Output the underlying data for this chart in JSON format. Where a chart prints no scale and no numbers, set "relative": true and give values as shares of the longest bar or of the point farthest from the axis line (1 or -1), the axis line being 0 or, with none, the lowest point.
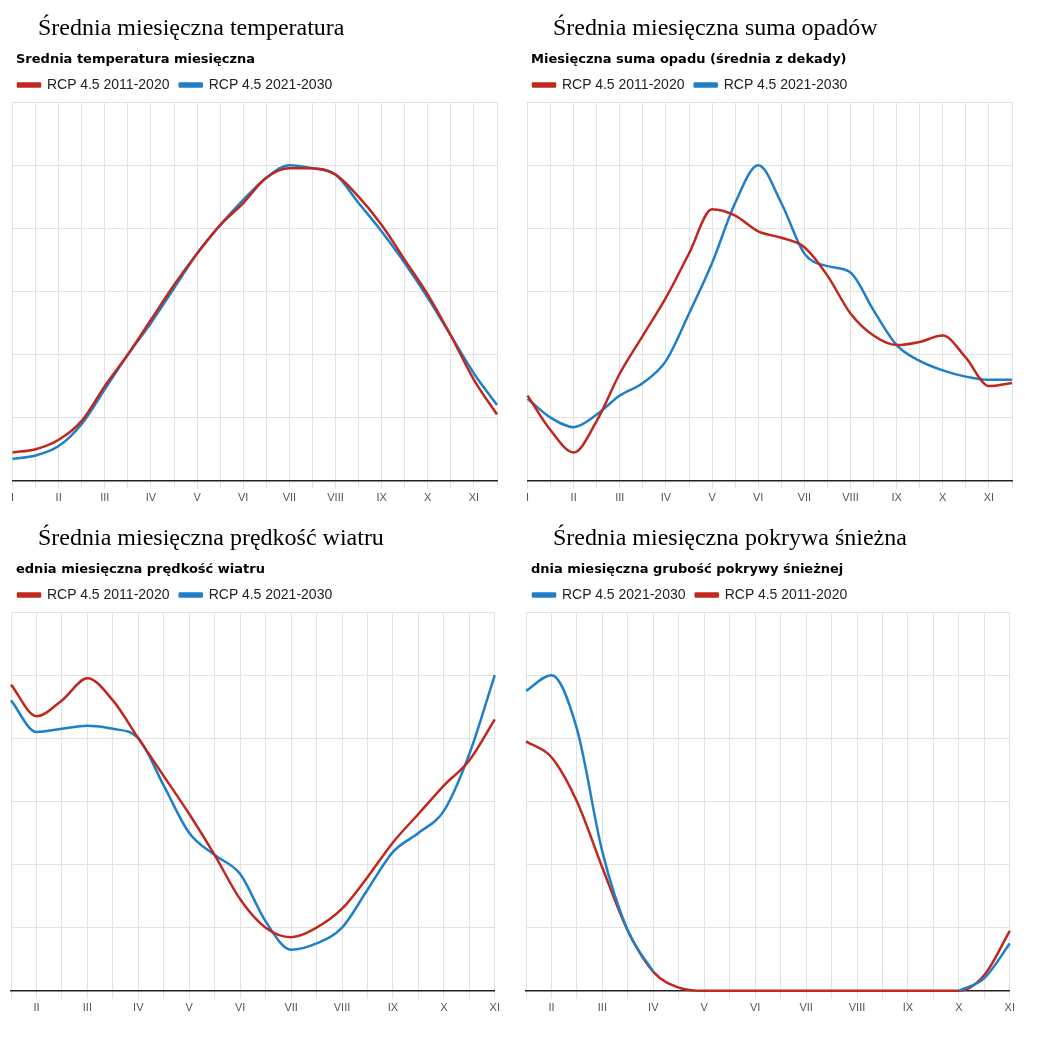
{
  "chart_data": [
    {
      "type": "line",
      "title": "Średnia miesięczna temperatura",
      "subtitle": "Srednia temperatura miesięczna",
      "relative": true,
      "grid": true,
      "legend": "top left",
      "categories": [
        "I",
        null,
        "II",
        null,
        "III",
        null,
        "IV",
        null,
        "V",
        null,
        "VI",
        null,
        "VII",
        null,
        "VIII",
        null,
        "IX",
        null,
        "X",
        null,
        "XI",
        null
      ],
      "series": [
        {
          "name": "RCP 4.5 2011-2020",
          "color": "#c0281e",
          "values": [
            0.09,
            0.1,
            0.13,
            0.19,
            0.3,
            0.4,
            0.51,
            0.62,
            0.72,
            0.81,
            0.88,
            0.96,
            0.99,
            0.99,
            0.97,
            0.9,
            0.81,
            0.7,
            0.59,
            0.46,
            0.32,
            0.21
          ]
        },
        {
          "name": "RCP 4.5 2021-2030",
          "color": "#1f7fc8",
          "values": [
            0.07,
            0.08,
            0.11,
            0.18,
            0.29,
            0.4,
            0.5,
            0.61,
            0.72,
            0.81,
            0.89,
            0.96,
            1.0,
            0.99,
            0.97,
            0.88,
            0.79,
            0.69,
            0.58,
            0.46,
            0.34,
            0.24
          ]
        }
      ]
    },
    {
      "type": "line",
      "title": "Średnia miesięczna suma opadów",
      "subtitle": "Miesięczna suma opadu (średnia z dekady)",
      "relative": true,
      "grid": true,
      "legend": "top left",
      "categories": [
        "I",
        null,
        "II",
        null,
        "III",
        null,
        "IV",
        null,
        "V",
        null,
        "VI",
        null,
        "VII",
        null,
        "VIII",
        null,
        "IX",
        null,
        "X",
        null,
        "XI",
        null
      ],
      "series": [
        {
          "name": "RCP 4.5 2011-2020",
          "color": "#c0281e",
          "values": [
            0.27,
            0.16,
            0.09,
            0.19,
            0.34,
            0.46,
            0.58,
            0.72,
            0.86,
            0.84,
            0.79,
            0.77,
            0.74,
            0.65,
            0.53,
            0.46,
            0.43,
            0.44,
            0.46,
            0.39,
            0.3,
            0.31
          ]
        },
        {
          "name": "RCP 4.5 2021-2030",
          "color": "#1f7fc8",
          "values": [
            0.26,
            0.2,
            0.17,
            0.21,
            0.27,
            0.31,
            0.38,
            0.53,
            0.69,
            0.88,
            1.0,
            0.88,
            0.72,
            0.68,
            0.66,
            0.54,
            0.43,
            0.38,
            0.35,
            0.33,
            0.32,
            0.32
          ]
        }
      ]
    },
    {
      "type": "line",
      "title": "Średnia miesięczna prędkość wiatru",
      "subtitle": "ednia miesięczna prędkość wiatru",
      "relative": true,
      "grid": true,
      "legend": "top left",
      "categories": [
        null,
        "II",
        null,
        "III",
        null,
        "IV",
        null,
        "V",
        null,
        "VI",
        null,
        "VII",
        null,
        "VIII",
        null,
        "IX",
        null,
        "X",
        null,
        "XI"
      ],
      "series": [
        {
          "name": "RCP 4.5 2011-2020",
          "color": "#c0281e",
          "values": [
            0.97,
            0.87,
            0.92,
            0.99,
            0.92,
            0.8,
            0.68,
            0.56,
            0.43,
            0.29,
            0.2,
            0.17,
            0.2,
            0.26,
            0.36,
            0.47,
            0.56,
            0.65,
            0.73,
            0.86
          ]
        },
        {
          "name": "RCP 4.5 2021-2030",
          "color": "#1f7fc8",
          "values": [
            0.92,
            0.82,
            0.83,
            0.84,
            0.83,
            0.8,
            0.65,
            0.5,
            0.43,
            0.37,
            0.22,
            0.13,
            0.15,
            0.2,
            0.32,
            0.44,
            0.5,
            0.57,
            0.75,
            1.0
          ]
        }
      ]
    },
    {
      "type": "line",
      "title": "Średnia miesięczna pokrywa śnieżna",
      "subtitle": "dnia miesięczna grubość pokrywy śnieżnej",
      "relative": true,
      "grid": true,
      "legend": "top left",
      "categories": [
        null,
        "II",
        null,
        "III",
        null,
        "IV",
        null,
        "V",
        null,
        "VI",
        null,
        "VII",
        null,
        "VIII",
        null,
        "IX",
        null,
        "X",
        null,
        "XI"
      ],
      "series": [
        {
          "name": "RCP 4.5 2021-2030",
          "color": "#1f7fc8",
          "values": [
            0.95,
            1.0,
            0.83,
            0.44,
            0.19,
            0.06,
            null,
            null,
            null,
            null,
            null,
            null,
            null,
            null,
            null,
            null,
            null,
            0,
            0.04,
            0.15
          ]
        },
        {
          "name": "RCP 4.5 2011-2020",
          "color": "#c0281e",
          "values": [
            0.79,
            0.74,
            0.6,
            0.39,
            0.19,
            0.06,
            0.01,
            0,
            0,
            0,
            0,
            0,
            0,
            0,
            0,
            0,
            0,
            0,
            0.05,
            0.19
          ]
        }
      ]
    }
  ]
}
